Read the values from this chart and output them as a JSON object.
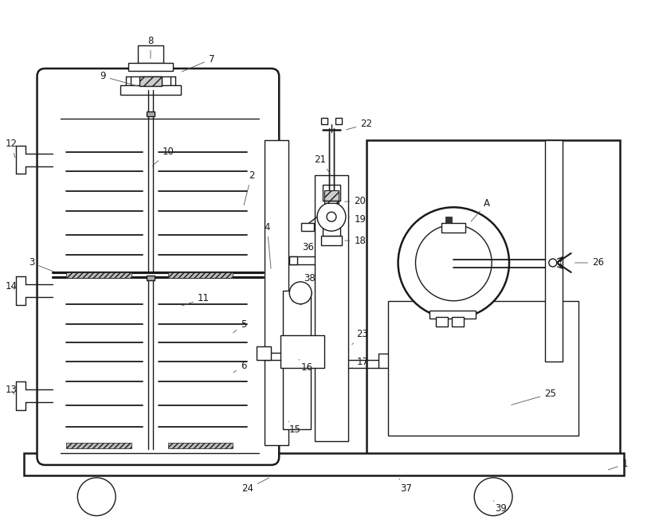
{
  "bg_color": "#ffffff",
  "lc": "#1a1a1a",
  "lw": 1.0,
  "tlw": 1.8,
  "fs": 8.5
}
